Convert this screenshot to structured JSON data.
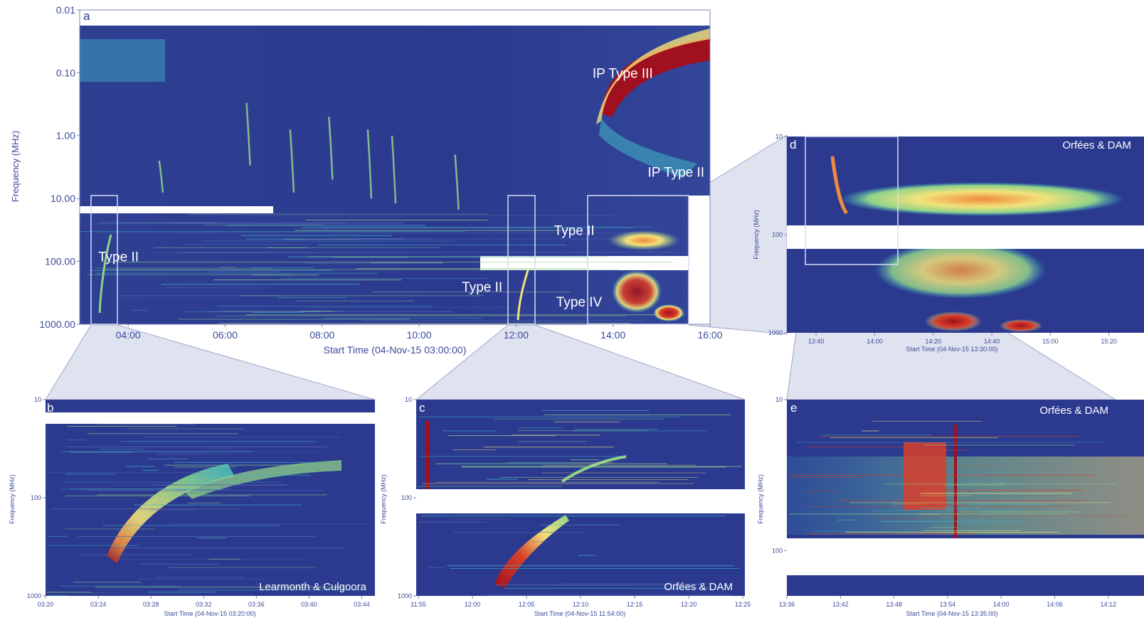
{
  "colors": {
    "background_low": "#2b3a8f",
    "cyan": "#3fb6c6",
    "green": "#8fd28a",
    "yellow": "#f2e27a",
    "orange": "#f08a3c",
    "red": "#a0101e",
    "axis_text": "#3d4b9c",
    "annotation_text": "#ffffff"
  },
  "chart_data": [
    {
      "panel": "a",
      "type": "heatmap",
      "xlabel": "Start Time (04-Nov-15 03:00:00)",
      "ylabel": "Frequency (MHz)",
      "x_ticks": [
        "04:00",
        "06:00",
        "08:00",
        "10:00",
        "12:00",
        "14:00",
        "16:00"
      ],
      "x_tick_hours": [
        4,
        6,
        8,
        10,
        12,
        14,
        16
      ],
      "xlim_hours": [
        3.0,
        16.0
      ],
      "y_ticks": [
        "0.01",
        "0.10",
        "1.00",
        "10.00",
        "100.00",
        "1000.00"
      ],
      "y_tick_values": [
        0.01,
        0.1,
        1,
        10,
        100,
        1000
      ],
      "ylim": [
        0.01,
        1000
      ],
      "y_scale": "log",
      "y_inverted": true,
      "annotations": [
        {
          "text": "IP Type III",
          "time_h": 14.2,
          "freq": 0.12
        },
        {
          "text": "IP Type II",
          "time_h": 15.3,
          "freq": 4.5
        },
        {
          "text": "Type II",
          "time_h": 3.8,
          "freq": 100
        },
        {
          "text": "Type II",
          "time_h": 13.2,
          "freq": 38
        },
        {
          "text": "Type II",
          "time_h": 11.3,
          "freq": 300
        },
        {
          "text": "Type IV",
          "time_h": 13.3,
          "freq": 520
        }
      ],
      "burst_tracks": [
        {
          "kind": "type_iii",
          "time_h": 6.5,
          "freq_top": 0.3,
          "freq_bottom": 3
        },
        {
          "kind": "type_iii",
          "time_h": 7.4,
          "freq_top": 0.8,
          "freq_bottom": 8
        },
        {
          "kind": "type_iii",
          "time_h": 8.2,
          "freq_top": 0.5,
          "freq_bottom": 5
        },
        {
          "kind": "type_iii",
          "time_h": 9.0,
          "freq_top": 0.8,
          "freq_bottom": 10
        },
        {
          "kind": "type_iii",
          "time_h": 9.5,
          "freq_top": 1.0,
          "freq_bottom": 12
        },
        {
          "kind": "type_iii",
          "time_h": 10.8,
          "freq_top": 2.0,
          "freq_bottom": 15
        },
        {
          "kind": "type_iii",
          "time_h": 4.7,
          "freq_top": 2.5,
          "freq_bottom": 8
        }
      ],
      "zoom_boxes": [
        {
          "target": "b",
          "time_start_h": 3.25,
          "time_end_h": 3.8
        },
        {
          "target": "c",
          "time_start_h": 11.85,
          "time_end_h": 12.4
        },
        {
          "target": "d",
          "time_start_h": 13.45,
          "time_end_h": 15.55
        }
      ]
    },
    {
      "panel": "b",
      "type": "heatmap",
      "xlabel": "Start Time (04-Nov-15 03:20:00)",
      "ylabel": "Frequency (MHz)",
      "x_ticks": [
        "03:20",
        "03:24",
        "03:28",
        "03:32",
        "03:36",
        "03:40",
        "03:44"
      ],
      "x_tick_minutes": [
        20,
        24,
        28,
        32,
        36,
        40,
        44
      ],
      "xlim_minutes": [
        20,
        45
      ],
      "y_ticks": [
        "10",
        "100",
        "1000"
      ],
      "y_tick_values": [
        10,
        100,
        1000
      ],
      "ylim": [
        10,
        1000
      ],
      "y_scale": "log",
      "y_inverted": true,
      "annotations": [
        {
          "text": "Learmonth & Culgoora"
        }
      ],
      "burst_tracks": [
        {
          "kind": "type_ii_fundamental",
          "points": [
            [
              25.2,
              520
            ],
            [
              26.5,
              260
            ],
            [
              28.5,
              110
            ],
            [
              31.5,
              65
            ],
            [
              36,
              45
            ],
            [
              40,
              40
            ]
          ]
        },
        {
          "kind": "type_ii_harmonic",
          "points": [
            [
              26.5,
              200
            ],
            [
              28.5,
              90
            ],
            [
              31,
              60
            ],
            [
              35,
              50
            ],
            [
              39,
              44
            ]
          ]
        }
      ]
    },
    {
      "panel": "c",
      "type": "heatmap",
      "xlabel": "Start Time (04-Nov-15 11:54:00)",
      "ylabel": "Frequency (MHz)",
      "x_ticks": [
        "11:55",
        "12:00",
        "12:05",
        "12:10",
        "12:15",
        "12:20",
        "12:25"
      ],
      "x_tick_minutes": [
        55,
        60,
        65,
        70,
        75,
        80,
        85
      ],
      "xlim_minutes": [
        54.8,
        85.2
      ],
      "y_ticks": [
        "10",
        "100",
        "1000"
      ],
      "y_tick_values": [
        10,
        100,
        1000
      ],
      "ylim": [
        10,
        1000
      ],
      "y_scale": "log",
      "y_inverted": true,
      "annotations": [
        {
          "text": "Orfées & DAM"
        }
      ],
      "burst_tracks": [
        {
          "kind": "type_iii",
          "points": [
            [
              55.2,
              10
            ],
            [
              55.3,
              70
            ]
          ]
        },
        {
          "kind": "type_ii_fundamental",
          "points": [
            [
              61.7,
              600
            ],
            [
              63.5,
              300
            ],
            [
              65.5,
              180
            ],
            [
              67.5,
              150
            ]
          ]
        },
        {
          "kind": "type_ii_harmonic",
          "points": [
            [
              62,
              300
            ],
            [
              64,
              200
            ],
            [
              67,
              110
            ],
            [
              70,
              60
            ],
            [
              72,
              50
            ]
          ]
        }
      ]
    },
    {
      "panel": "d",
      "type": "heatmap",
      "xlabel": "Start Time (04-Nov-15 13:30:00)",
      "ylabel": "Frequency (MHz)",
      "x_ticks": [
        "13:40",
        "14:00",
        "14:20",
        "14:40",
        "15:00",
        "15:20"
      ],
      "x_tick_minutes": [
        40,
        60,
        80,
        100,
        120,
        140
      ],
      "xlim_minutes": [
        30,
        152
      ],
      "y_ticks": [
        "10",
        "100",
        "1000"
      ],
      "y_tick_values": [
        10,
        100,
        1000
      ],
      "ylim": [
        10,
        1000
      ],
      "y_scale": "log",
      "y_inverted": true,
      "annotations": [
        {
          "text": "Orfées & DAM"
        }
      ],
      "zoom_boxes": [
        {
          "target": "e",
          "time_start_h": 13.6,
          "time_end_h": 14.2
        }
      ]
    },
    {
      "panel": "e",
      "type": "heatmap",
      "xlabel": "Start Time (04-Nov-15 13:35:00)",
      "ylabel": "Frequency (MHz)",
      "x_ticks": [
        "13:36",
        "13:42",
        "13:48",
        "13:54",
        "14:00",
        "14:06",
        "14:12"
      ],
      "x_tick_minutes": [
        36,
        42,
        48,
        54,
        60,
        66,
        72
      ],
      "xlim_minutes": [
        36,
        76
      ],
      "y_ticks": [
        "10",
        "100"
      ],
      "y_tick_values": [
        10,
        100
      ],
      "ylim": [
        10,
        200
      ],
      "y_scale": "log",
      "y_inverted": true,
      "annotations": [
        {
          "text": "Orfées & DAM"
        }
      ]
    }
  ]
}
